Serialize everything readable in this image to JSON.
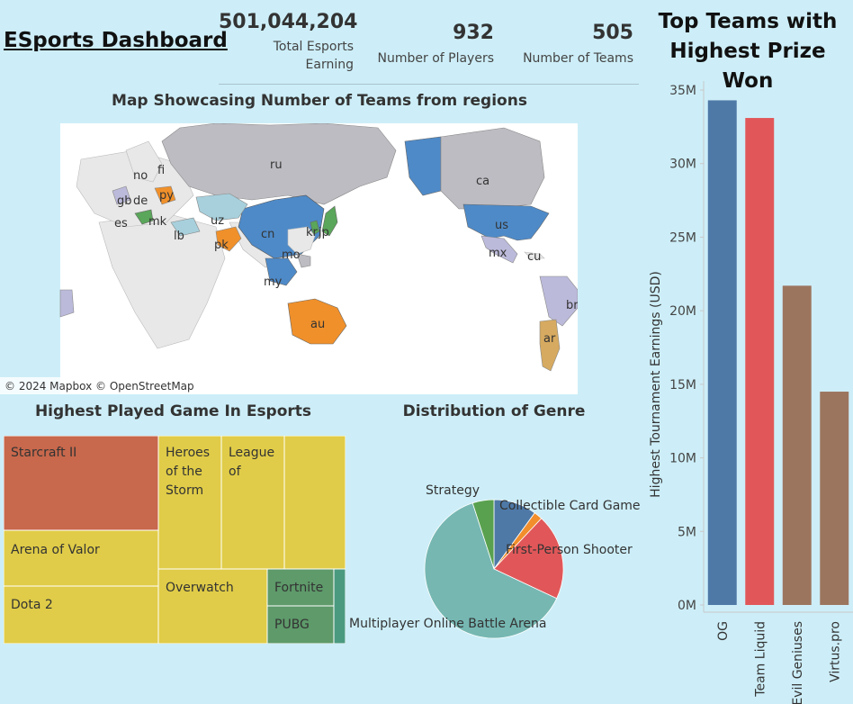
{
  "dashboard": {
    "title": "ESports Dashboard",
    "kpis": [
      {
        "value": "501,044,204",
        "label_line1": "Total Esports",
        "label_line2": "Earning"
      },
      {
        "value": "932",
        "label_line1": "Number of Players",
        "label_line2": ""
      },
      {
        "value": "505",
        "label_line1": "Number of Teams",
        "label_line2": ""
      }
    ]
  },
  "map": {
    "title": "Map Showcasing Number of Teams from regions",
    "attribution": "© 2024 Mapbox © OpenStreetMap",
    "region_labels": [
      "ru",
      "ca",
      "us",
      "cn",
      "kr",
      "jp",
      "no",
      "fi",
      "gb",
      "de",
      "py",
      "es",
      "mk",
      "uz",
      "lb",
      "pk",
      "mo",
      "my",
      "au",
      "mx",
      "cu",
      "br",
      "ar"
    ],
    "colors": {
      "land": "#e8e8e8",
      "blue": "#4e8ac8",
      "orange": "#f0902a",
      "grey": "#bdbcc2",
      "lightblue": "#a7d0dc",
      "lavender": "#bcbadb",
      "green": "#5aa65a",
      "tan": "#d6aa60",
      "ocean": "#ffffff"
    }
  },
  "treemap": {
    "title": "Highest Played Game In Esports",
    "labels": {
      "starcraft": "Starcraft II",
      "heroes_1": "Heroes",
      "heroes_2": "of the",
      "heroes_3": "Storm",
      "league_1": "League",
      "league_2": "of",
      "arena": "Arena of Valor",
      "dota": "Dota 2",
      "overwatch": "Overwatch",
      "fortnite": "Fortnite",
      "pubg": "PUBG"
    },
    "colors": {
      "starcraft": "#c8684c",
      "yellow": "#e0cc48",
      "green": "#5e9a6a",
      "teal": "#4a9a80"
    }
  },
  "chart_data": [
    {
      "type": "bar",
      "title": "Top Teams with Highest Prize Won",
      "categories": [
        "OG",
        "Team Liquid",
        "Evil Geniuses",
        "Virtus.pro"
      ],
      "values": [
        34300000,
        33100000,
        21700000,
        14500000
      ],
      "ylabel": "Highest Tournament Earnings (USD)",
      "ylim": [
        0,
        35000000
      ],
      "yticks": [
        0,
        5000000,
        10000000,
        15000000,
        20000000,
        25000000,
        30000000,
        35000000
      ],
      "ytick_labels": [
        "0M",
        "5M",
        "10M",
        "15M",
        "20M",
        "25M",
        "30M",
        "35M"
      ],
      "colors": [
        "#4e79a7",
        "#e15759",
        "#9c755f",
        "#9c755f"
      ],
      "grid": false,
      "legend": "none"
    },
    {
      "type": "pie",
      "title": "Distribution of Genre",
      "slices": [
        {
          "label": "Collectible Card Game",
          "value": 10,
          "color": "#4e79a7"
        },
        {
          "label": "",
          "value": 2,
          "color": "#f28e2b"
        },
        {
          "label": "First-Person Shooter",
          "value": 20,
          "color": "#e15759"
        },
        {
          "label": "Multiplayer Online Battle Arena",
          "value": 63,
          "color": "#76b7b2"
        },
        {
          "label": "Strategy",
          "value": 5,
          "color": "#59a14f"
        }
      ]
    }
  ]
}
